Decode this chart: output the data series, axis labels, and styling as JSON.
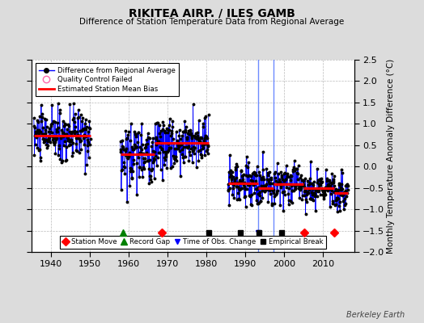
{
  "title": "RIKITEA AIRP. / ILES GAMB",
  "subtitle": "Difference of Station Temperature Data from Regional Average",
  "ylabel": "Monthly Temperature Anomaly Difference (°C)",
  "xlim": [
    1935,
    2018
  ],
  "ylim": [
    -2.0,
    2.5
  ],
  "yticks": [
    -2.0,
    -1.5,
    -1.0,
    -0.5,
    0.0,
    0.5,
    1.0,
    1.5,
    2.0,
    2.5
  ],
  "xticks": [
    1940,
    1950,
    1960,
    1970,
    1980,
    1990,
    2000,
    2010
  ],
  "bg_color": "#dcdcdc",
  "plot_bg_color": "#ffffff",
  "grid_color": "#aaaaaa",
  "line_color": "#0000ff",
  "marker_color": "#000000",
  "bias_color": "#ff0000",
  "bias_segments": [
    {
      "xstart": 1935.5,
      "xend": 1950.1,
      "bias": 0.73
    },
    {
      "xstart": 1957.8,
      "xend": 1966.7,
      "bias": 0.28
    },
    {
      "xstart": 1966.7,
      "xend": 1980.6,
      "bias": 0.55
    },
    {
      "xstart": 1985.5,
      "xend": 1993.2,
      "bias": -0.4
    },
    {
      "xstart": 1993.2,
      "xend": 1997.2,
      "bias": -0.5
    },
    {
      "xstart": 1997.2,
      "xend": 2005.0,
      "bias": -0.42
    },
    {
      "xstart": 2005.0,
      "xend": 2012.8,
      "bias": -0.5
    },
    {
      "xstart": 2012.8,
      "xend": 2016.5,
      "bias": -0.62
    }
  ],
  "vertical_lines": [
    {
      "x": 1993.3,
      "color": "#5577ff",
      "lw": 1.0
    },
    {
      "x": 1997.2,
      "color": "#5577ff",
      "lw": 1.0
    }
  ],
  "station_moves": [
    1968.5,
    2005.2,
    2012.8
  ],
  "record_gaps": [
    1958.5
  ],
  "time_obs_changes": [
    1993.3
  ],
  "empirical_breaks": [
    1980.5,
    1988.7,
    1993.5,
    1999.3
  ],
  "data_segments": [
    {
      "tstart": 1935.5,
      "tend": 1950.1,
      "bias": 0.73,
      "std": 0.3
    },
    {
      "tstart": 1957.8,
      "tend": 1966.7,
      "bias": 0.28,
      "std": 0.35
    },
    {
      "tstart": 1966.7,
      "tend": 1980.6,
      "bias": 0.55,
      "std": 0.3
    },
    {
      "tstart": 1985.5,
      "tend": 1993.2,
      "bias": -0.38,
      "std": 0.28
    },
    {
      "tstart": 1993.2,
      "tend": 1997.2,
      "bias": -0.48,
      "std": 0.25
    },
    {
      "tstart": 1997.2,
      "tend": 2005.0,
      "bias": -0.42,
      "std": 0.22
    },
    {
      "tstart": 2005.0,
      "tend": 2012.8,
      "bias": -0.5,
      "std": 0.2
    },
    {
      "tstart": 2012.8,
      "tend": 2016.5,
      "bias": -0.65,
      "std": 0.22
    }
  ],
  "watermark": "Berkeley Earth",
  "seed": 42
}
